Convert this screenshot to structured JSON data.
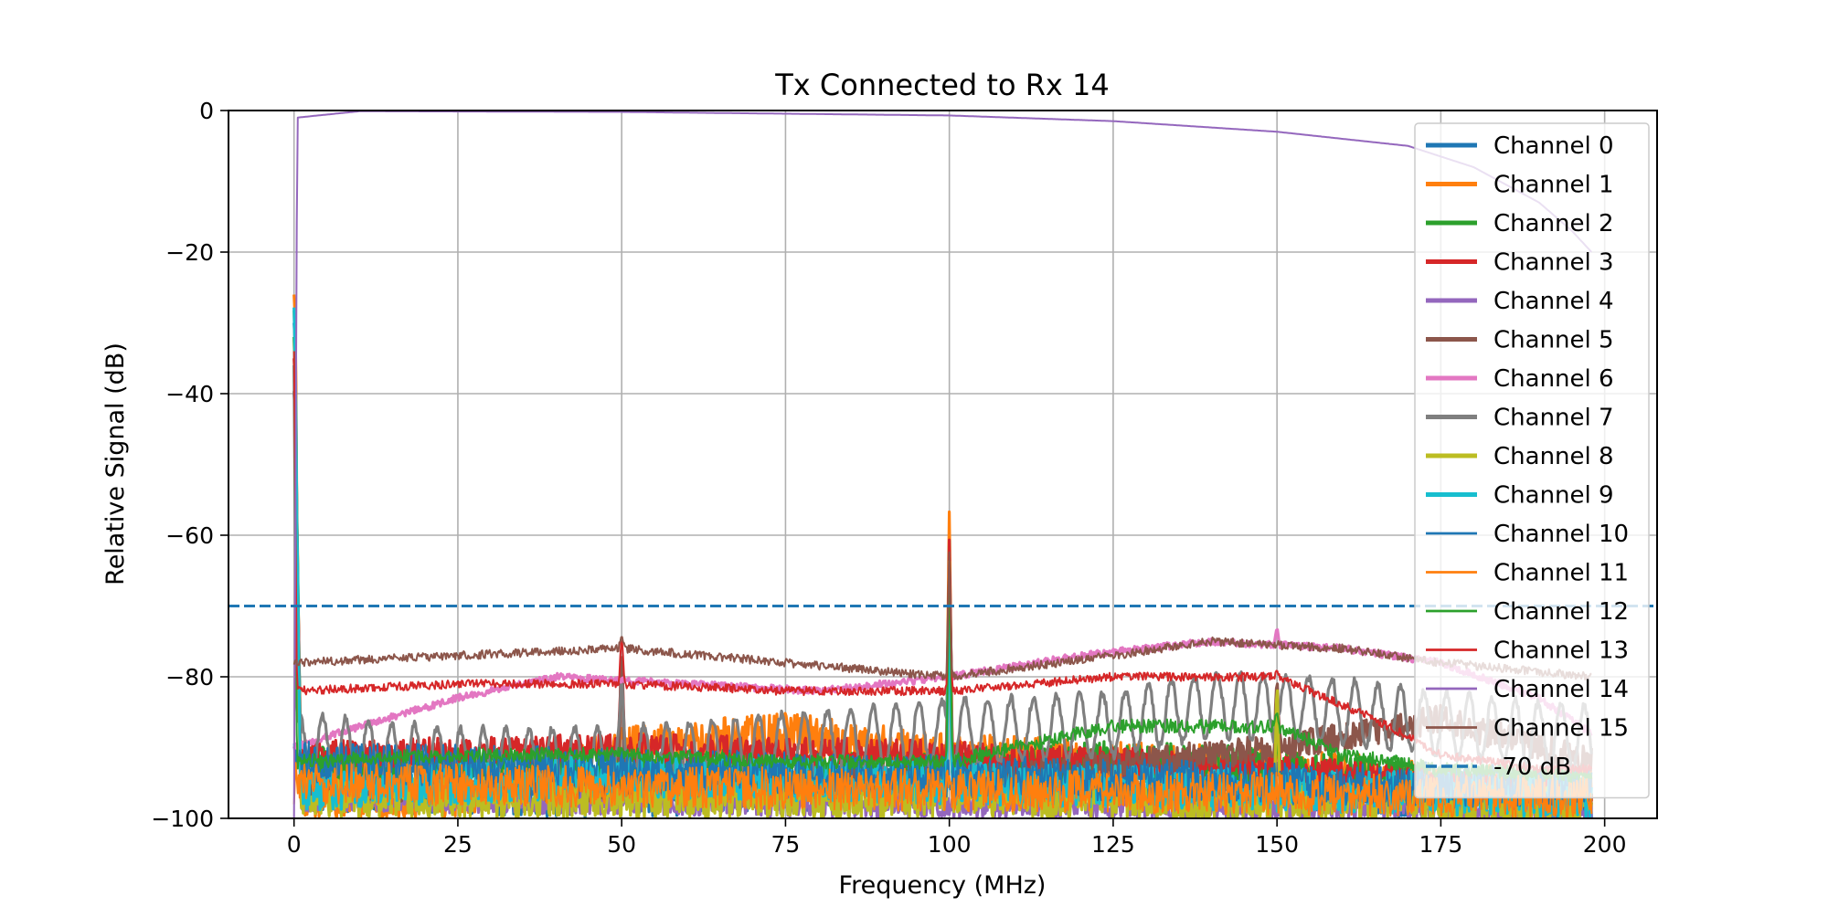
{
  "chart_data": {
    "type": "line",
    "title": "Tx Connected to Rx 14",
    "xlabel": "Frequency (MHz)",
    "ylabel": "Relative Signal (dB)",
    "xlim": [
      -10,
      208
    ],
    "ylim": [
      -100,
      0
    ],
    "x_ticks": [
      0,
      25,
      50,
      75,
      100,
      125,
      150,
      175,
      200
    ],
    "x_tick_labels": [
      "0",
      "25",
      "50",
      "75",
      "100",
      "125",
      "150",
      "175",
      "200"
    ],
    "y_ticks": [
      0,
      -20,
      -40,
      -60,
      -80,
      -100
    ],
    "y_tick_labels": [
      "0",
      "−20",
      "−40",
      "−60",
      "−80",
      "−100"
    ],
    "grid": true,
    "legend_position": "right",
    "x_range": [
      0,
      198
    ],
    "series": [
      {
        "name": "Channel 0",
        "color": "#1f77b4",
        "width": "thick",
        "points": [
          [
            0,
            -28
          ],
          [
            1,
            -95
          ],
          [
            50,
            -96
          ],
          [
            100,
            -94
          ],
          [
            150,
            -95
          ],
          [
            198,
            -97
          ]
        ],
        "spikes": [
          [
            0,
            -30
          ],
          [
            50,
            -93
          ],
          [
            100,
            -66
          ],
          [
            150,
            -92
          ]
        ],
        "jitter": 4
      },
      {
        "name": "Channel 1",
        "color": "#ff7f0e",
        "width": "thick",
        "points": [
          [
            0,
            -26
          ],
          [
            1,
            -97
          ],
          [
            25,
            -97
          ],
          [
            50,
            -90
          ],
          [
            75,
            -88
          ],
          [
            100,
            -91
          ],
          [
            125,
            -92
          ],
          [
            150,
            -93
          ],
          [
            175,
            -95
          ],
          [
            198,
            -96
          ]
        ],
        "spikes": [
          [
            0,
            -26
          ],
          [
            50,
            -88
          ],
          [
            100,
            -56
          ],
          [
            150,
            -88
          ]
        ],
        "jitter": 3
      },
      {
        "name": "Channel 2",
        "color": "#2ca02c",
        "width": "thick",
        "points": [
          [
            0,
            -32
          ],
          [
            1,
            -92
          ],
          [
            25,
            -93
          ],
          [
            50,
            -94
          ],
          [
            75,
            -93
          ],
          [
            100,
            -94
          ],
          [
            125,
            -92
          ],
          [
            150,
            -93
          ],
          [
            175,
            -95
          ],
          [
            198,
            -96
          ]
        ],
        "spikes": [
          [
            0,
            -32
          ],
          [
            50,
            -90
          ],
          [
            100,
            -60
          ],
          [
            150,
            -88
          ]
        ],
        "jitter": 3
      },
      {
        "name": "Channel 3",
        "color": "#d62728",
        "width": "thick",
        "points": [
          [
            0,
            -35
          ],
          [
            1,
            -91
          ],
          [
            50,
            -90
          ],
          [
            100,
            -91
          ],
          [
            125,
            -92
          ],
          [
            150,
            -93
          ],
          [
            175,
            -95
          ],
          [
            198,
            -97
          ]
        ],
        "spikes": [
          [
            0,
            -35
          ],
          [
            50,
            -75
          ],
          [
            100,
            -60
          ],
          [
            150,
            -80
          ]
        ],
        "jitter": 2
      },
      {
        "name": "Channel 4",
        "color": "#9467bd",
        "width": "thick",
        "points": [
          [
            0,
            -40
          ],
          [
            1,
            -97
          ],
          [
            100,
            -98
          ],
          [
            198,
            -99
          ]
        ],
        "spikes": [
          [
            0,
            -40
          ]
        ],
        "jitter": 2
      },
      {
        "name": "Channel 5",
        "color": "#8c564b",
        "width": "thick",
        "points": [
          [
            0,
            -40
          ],
          [
            1,
            -96
          ],
          [
            100,
            -95
          ],
          [
            150,
            -90
          ],
          [
            175,
            -86
          ],
          [
            190,
            -90
          ],
          [
            198,
            -92
          ]
        ],
        "spikes": [
          [
            0,
            -40
          ],
          [
            50,
            -74
          ],
          [
            100,
            -65
          ],
          [
            150,
            -80
          ]
        ],
        "jitter": 2
      },
      {
        "name": "Channel 6",
        "color": "#e377c2",
        "width": "thick",
        "points": [
          [
            0,
            -90
          ],
          [
            10,
            -87
          ],
          [
            25,
            -83
          ],
          [
            40,
            -80
          ],
          [
            60,
            -81
          ],
          [
            80,
            -82
          ],
          [
            100,
            -80
          ],
          [
            120,
            -77
          ],
          [
            140,
            -75
          ],
          [
            160,
            -76
          ],
          [
            175,
            -78
          ],
          [
            190,
            -83
          ],
          [
            198,
            -88
          ]
        ],
        "spikes": [
          [
            150,
            -73
          ]
        ],
        "jitter": 0.5
      },
      {
        "name": "Channel 7",
        "color": "#7f7f7f",
        "width": "thick",
        "points": [
          [
            0,
            -88
          ],
          [
            25,
            -90
          ],
          [
            50,
            -90
          ],
          [
            75,
            -88
          ],
          [
            100,
            -86
          ],
          [
            125,
            -85
          ],
          [
            140,
            -82
          ],
          [
            160,
            -83
          ],
          [
            175,
            -85
          ],
          [
            198,
            -87
          ]
        ],
        "spikes": [
          [
            0,
            -36
          ],
          [
            50,
            -80
          ],
          [
            100,
            -65
          ],
          [
            150,
            -84
          ]
        ],
        "jitter": 0.6,
        "ripple": 4.5
      },
      {
        "name": "Channel 8",
        "color": "#bcbd22",
        "width": "thick",
        "points": [
          [
            0,
            -30
          ],
          [
            1,
            -97
          ],
          [
            100,
            -97
          ],
          [
            198,
            -98
          ]
        ],
        "spikes": [
          [
            0,
            -30
          ],
          [
            100,
            -63
          ],
          [
            150,
            -80
          ]
        ],
        "jitter": 3
      },
      {
        "name": "Channel 9",
        "color": "#17becf",
        "width": "thick",
        "points": [
          [
            0,
            -30
          ],
          [
            1,
            -96
          ],
          [
            50,
            -94
          ],
          [
            100,
            -95
          ],
          [
            150,
            -96
          ],
          [
            198,
            -97
          ]
        ],
        "spikes": [
          [
            0,
            -30
          ],
          [
            100,
            -66
          ]
        ],
        "jitter": 3
      },
      {
        "name": "Channel 10",
        "color": "#1f77b4",
        "width": "thin",
        "points": [
          [
            0,
            -92
          ],
          [
            198,
            -96
          ]
        ],
        "spikes": [],
        "jitter": 3
      },
      {
        "name": "Channel 11",
        "color": "#ff7f0e",
        "width": "thin",
        "points": [
          [
            0,
            -95
          ],
          [
            198,
            -97
          ]
        ],
        "spikes": [],
        "jitter": 3
      },
      {
        "name": "Channel 12",
        "color": "#2ca02c",
        "width": "thin",
        "points": [
          [
            0,
            -92
          ],
          [
            25,
            -91
          ],
          [
            50,
            -91
          ],
          [
            75,
            -92
          ],
          [
            100,
            -92
          ],
          [
            115,
            -89
          ],
          [
            125,
            -87
          ],
          [
            150,
            -87
          ],
          [
            160,
            -91
          ],
          [
            175,
            -93
          ],
          [
            198,
            -94
          ]
        ],
        "spikes": [
          [
            0,
            -34
          ],
          [
            50,
            -90
          ],
          [
            100,
            -62
          ],
          [
            150,
            -85
          ]
        ],
        "jitter": 1
      },
      {
        "name": "Channel 13",
        "color": "#d62728",
        "width": "thin",
        "points": [
          [
            0,
            -82
          ],
          [
            25,
            -81
          ],
          [
            50,
            -81
          ],
          [
            75,
            -82
          ],
          [
            100,
            -82
          ],
          [
            125,
            -80
          ],
          [
            150,
            -80
          ],
          [
            165,
            -86
          ],
          [
            175,
            -91
          ],
          [
            190,
            -93
          ],
          [
            198,
            -93
          ]
        ],
        "spikes": [
          [
            0,
            -34
          ],
          [
            50,
            -74
          ],
          [
            100,
            -61
          ],
          [
            150,
            -79
          ]
        ],
        "jitter": 0.6
      },
      {
        "name": "Channel 14",
        "color": "#9467bd",
        "width": "thin",
        "points": [
          [
            0,
            -100
          ],
          [
            0.5,
            -1
          ],
          [
            10,
            -0.1
          ],
          [
            50,
            -0.2
          ],
          [
            80,
            -0.5
          ],
          [
            100,
            -0.7
          ],
          [
            125,
            -1.5
          ],
          [
            150,
            -3
          ],
          [
            170,
            -5
          ],
          [
            180,
            -8
          ],
          [
            190,
            -13
          ],
          [
            195,
            -17
          ],
          [
            198,
            -20
          ]
        ],
        "spikes": [],
        "jitter": 0
      },
      {
        "name": "Channel 15",
        "color": "#8c564b",
        "width": "thin",
        "points": [
          [
            0,
            -78
          ],
          [
            25,
            -77
          ],
          [
            50,
            -76
          ],
          [
            75,
            -78
          ],
          [
            100,
            -80
          ],
          [
            125,
            -77
          ],
          [
            140,
            -75
          ],
          [
            160,
            -76
          ],
          [
            175,
            -78
          ],
          [
            198,
            -80
          ]
        ],
        "spikes": [
          [
            50,
            -74
          ],
          [
            100,
            -62
          ],
          [
            150,
            -77
          ]
        ],
        "jitter": 0.6
      },
      {
        "name": "-70 dB",
        "color": "#1f77b4",
        "width": "dashed",
        "constant": -70
      }
    ]
  }
}
